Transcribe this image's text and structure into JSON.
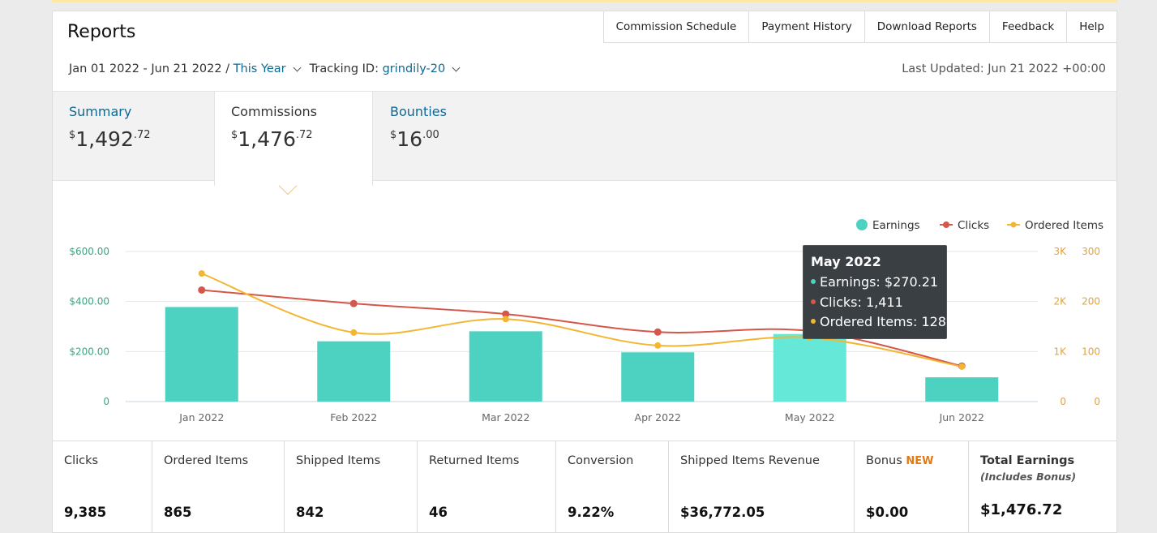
{
  "page": {
    "title": "Reports"
  },
  "toplinks": [
    "Commission Schedule",
    "Payment History",
    "Download Reports",
    "Feedback",
    "Help"
  ],
  "filters": {
    "date_range": "Jan 01 2022 - Jun 21 2022 / ",
    "period": "This Year",
    "tracking_label": "Tracking ID: ",
    "tracking_id": "grindily-20",
    "last_updated": "Last Updated: Jun 21 2022 +00:00"
  },
  "tabs": [
    {
      "label": "Summary",
      "cur": "$",
      "whole": "1,492",
      "cents": ".72"
    },
    {
      "label": "Commissions",
      "cur": "$",
      "whole": "1,476",
      "cents": ".72"
    },
    {
      "label": "Bounties",
      "cur": "$",
      "whole": "16",
      "cents": ".00"
    }
  ],
  "colors": {
    "earnings": "#4dd2c1",
    "earnings_hover": "#66e8d9",
    "clicks": "#d4574a",
    "ordered": "#f3b633",
    "axis_left": "#3aa77f",
    "axis_right": "#e2a33a"
  },
  "chart_data": {
    "type": "bar",
    "categories": [
      "Jan 2022",
      "Feb 2022",
      "Mar 2022",
      "Apr 2022",
      "May 2022",
      "Jun 2022"
    ],
    "series": [
      {
        "name": "Earnings",
        "type": "bar",
        "axis": "left",
        "values": [
          378,
          241,
          281,
          197,
          270.21,
          97
        ]
      },
      {
        "name": "Clicks",
        "type": "line",
        "axis": "right-clicks",
        "values": [
          2230,
          1960,
          1750,
          1390,
          1411,
          710
        ]
      },
      {
        "name": "Ordered Items",
        "type": "line",
        "axis": "right-items",
        "values": [
          256,
          138,
          165,
          112,
          128,
          70
        ]
      }
    ],
    "left_axis": {
      "ticks": [
        "0",
        "$200.00",
        "$400.00",
        "$600.00"
      ],
      "ylim": [
        0,
        600
      ]
    },
    "right_axis_clicks": {
      "ticks": [
        "0",
        "1K",
        "2K",
        "3K"
      ],
      "ylim": [
        0,
        3000
      ]
    },
    "right_axis_items": {
      "ticks": [
        "0",
        "100",
        "200",
        "300"
      ],
      "ylim": [
        0,
        300
      ]
    },
    "legend": {
      "placement": "top-right",
      "labels": [
        "Earnings",
        "Clicks",
        "Ordered Items"
      ]
    },
    "grid": true,
    "highlighted": "May 2022"
  },
  "tooltip": {
    "title": "May 2022",
    "earnings": "Earnings: $270.21",
    "clicks": "Clicks: 1,411",
    "ordered": "Ordered Items: 128"
  },
  "stats": [
    {
      "label": "Clicks",
      "value": "9,385"
    },
    {
      "label": "Ordered Items",
      "value": "865"
    },
    {
      "label": "Shipped Items",
      "value": "842"
    },
    {
      "label": "Returned Items",
      "value": "46"
    },
    {
      "label": "Conversion",
      "value": "9.22%"
    },
    {
      "label": "Shipped Items Revenue",
      "value": "$36,772.05"
    },
    {
      "label": "Bonus",
      "badge": "NEW",
      "value": "$0.00"
    },
    {
      "label": "Total Earnings",
      "sublabel": "(Includes Bonus)",
      "value": "$1,476.72"
    }
  ]
}
